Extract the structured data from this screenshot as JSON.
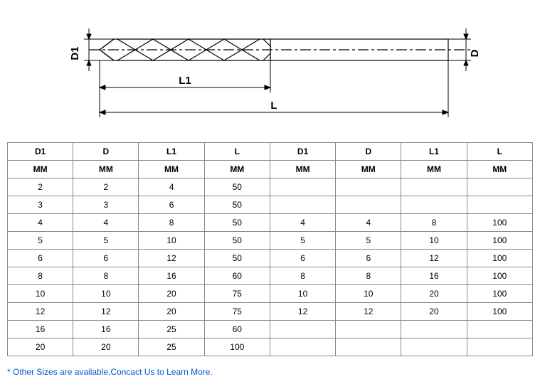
{
  "diagram": {
    "labels": {
      "d1": "D1",
      "d": "D",
      "l1": "L1",
      "l": "L"
    }
  },
  "table": {
    "headers": [
      "D1",
      "D",
      "L1",
      "L",
      "D1",
      "D",
      "L1",
      "L"
    ],
    "units": [
      "MM",
      "MM",
      "MM",
      "MM",
      "MM",
      "MM",
      "MM",
      "MM"
    ],
    "rows": [
      [
        "2",
        "2",
        "4",
        "50",
        "",
        "",
        "",
        ""
      ],
      [
        "3",
        "3",
        "6",
        "50",
        "",
        "",
        "",
        ""
      ],
      [
        "4",
        "4",
        "8",
        "50",
        "4",
        "4",
        "8",
        "100"
      ],
      [
        "5",
        "5",
        "10",
        "50",
        "5",
        "5",
        "10",
        "100"
      ],
      [
        "6",
        "6",
        "12",
        "50",
        "6",
        "6",
        "12",
        "100"
      ],
      [
        "8",
        "8",
        "16",
        "60",
        "8",
        "8",
        "16",
        "100"
      ],
      [
        "10",
        "10",
        "20",
        "75",
        "10",
        "10",
        "20",
        "100"
      ],
      [
        "12",
        "12",
        "20",
        "75",
        "12",
        "12",
        "20",
        "100"
      ],
      [
        "16",
        "16",
        "25",
        "60",
        "",
        "",
        "",
        ""
      ],
      [
        "20",
        "20",
        "25",
        "100",
        "",
        "",
        "",
        ""
      ]
    ]
  },
  "footnote": "* Other Sizes are available,Concact Us to Learn More."
}
